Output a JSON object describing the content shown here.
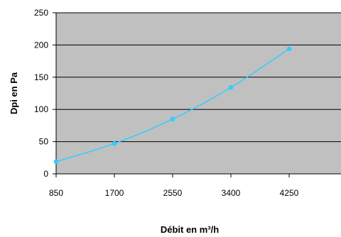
{
  "chart_data": {
    "type": "line",
    "title": "",
    "xlabel": "Débit en m³/h",
    "ylabel": "Dpi en Pa",
    "x": [
      850,
      1700,
      2550,
      3400,
      4250
    ],
    "x_tick_labels": [
      "850",
      "1700",
      "2550",
      "3400",
      "4250"
    ],
    "series": [
      {
        "values": [
          19,
          47,
          85,
          134,
          194
        ]
      }
    ],
    "ylim": [
      0,
      250
    ],
    "y_ticks": [
      0,
      50,
      100,
      150,
      200,
      250
    ],
    "y_tick_labels": [
      "0",
      "50",
      "100",
      "150",
      "200",
      "250"
    ],
    "grid": true,
    "legend": "none",
    "colors": {
      "plot_background": "#c0c0c0",
      "line": "#33ccff",
      "gridline": "#000000",
      "axis": "#000000"
    }
  }
}
